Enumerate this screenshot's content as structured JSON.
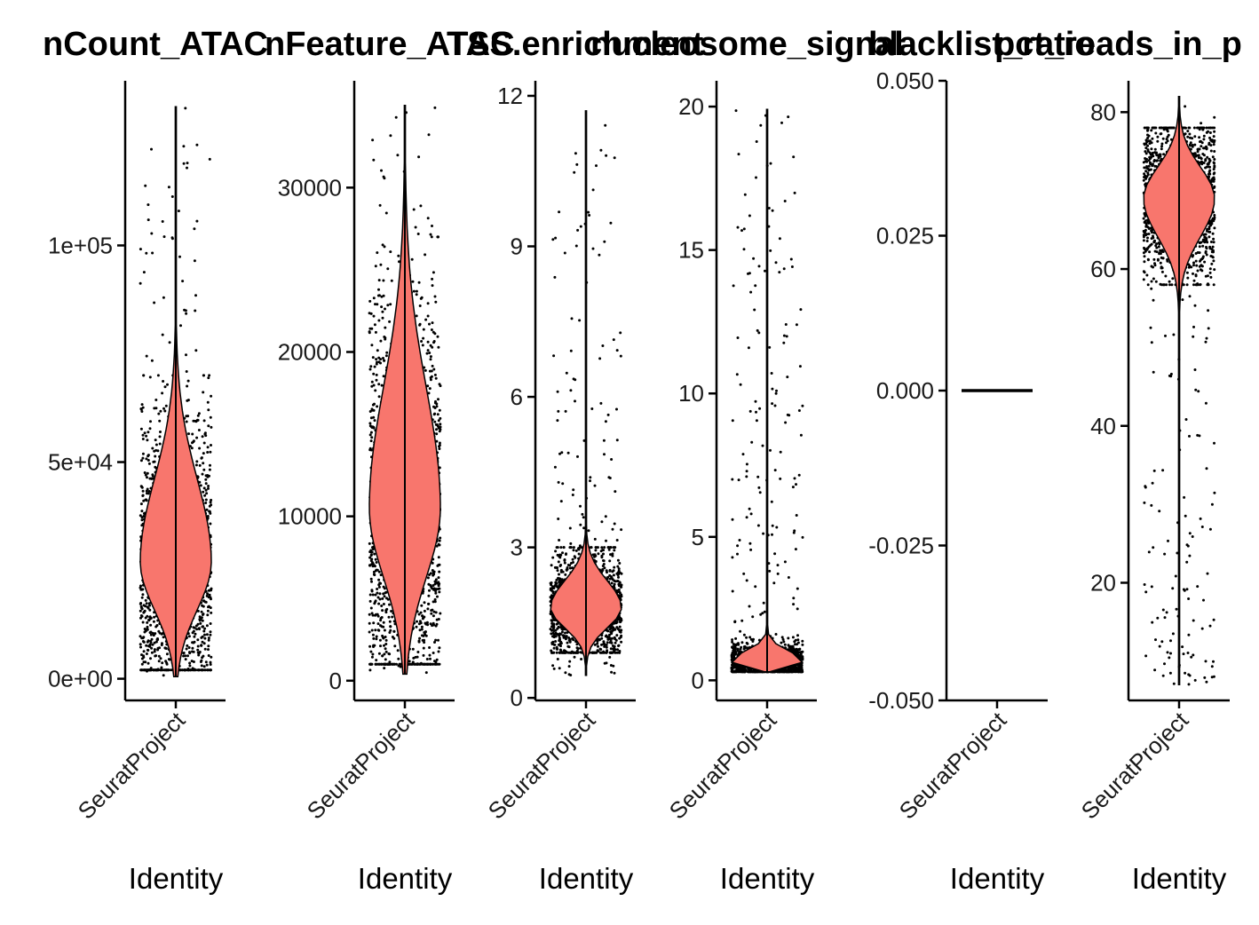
{
  "chart_data": [
    {
      "type": "violin",
      "title": "nCount_ATAC",
      "xlabel": "Identity",
      "categories": [
        "SeuratProject"
      ],
      "ylim": [
        -5000,
        138000
      ],
      "yticks": [
        0,
        50000,
        100000
      ],
      "ytick_labels": [
        "0e+00",
        "5e+04",
        "1e+05"
      ],
      "summary": {
        "min": 500,
        "max": 132000,
        "median": 27000,
        "bulk_low": 2000,
        "bulk_high": 70000
      },
      "fill_color": "#f8766d",
      "point_color": "#000000"
    },
    {
      "type": "violin",
      "title": "nFeature_ATAC",
      "xlabel": "Identity",
      "categories": [
        "SeuratProject"
      ],
      "ylim": [
        -1200,
        36500
      ],
      "yticks": [
        0,
        10000,
        20000,
        30000
      ],
      "ytick_labels": [
        "0",
        "10000",
        "20000",
        "30000"
      ],
      "summary": {
        "min": 400,
        "max": 35000,
        "median": 10500,
        "bulk_low": 1000,
        "bulk_high": 27000
      },
      "fill_color": "#f8766d",
      "point_color": "#000000"
    },
    {
      "type": "violin",
      "title": "TSS.enrichment",
      "xlabel": "Identity",
      "categories": [
        "SeuratProject"
      ],
      "ylim": [
        -0.05,
        12.3
      ],
      "yticks": [
        0,
        3,
        6,
        9,
        12
      ],
      "ytick_labels": [
        "0",
        "3",
        "6",
        "9",
        "12"
      ],
      "summary": {
        "min": 0.45,
        "max": 11.7,
        "median": 1.8,
        "bulk_low": 0.9,
        "bulk_high": 3.0
      },
      "fill_color": "#f8766d",
      "point_color": "#000000"
    },
    {
      "type": "violin",
      "title": "nucleosome_signal",
      "xlabel": "Identity",
      "categories": [
        "SeuratProject"
      ],
      "ylim": [
        -0.7,
        20.9
      ],
      "yticks": [
        0,
        5,
        10,
        15,
        20
      ],
      "ytick_labels": [
        "0",
        "5",
        "10",
        "15",
        "20"
      ],
      "summary": {
        "min": 0.3,
        "max": 19.9,
        "median": 0.65,
        "bulk_low": 0.3,
        "bulk_high": 1.5
      },
      "fill_color": "#f8766d",
      "point_color": "#000000"
    },
    {
      "type": "violin",
      "title": "blacklist_ratio",
      "xlabel": "Identity",
      "categories": [
        "SeuratProject"
      ],
      "ylim": [
        -0.05,
        0.05
      ],
      "yticks": [
        -0.05,
        -0.025,
        0,
        0.025,
        0.05
      ],
      "ytick_labels": [
        "-0.050",
        "-0.025",
        "0.000",
        "0.025",
        "0.050"
      ],
      "summary": {
        "min": 0,
        "max": 0,
        "median": 0,
        "bulk_low": 0,
        "bulk_high": 0
      },
      "fill_color": "#f8766d",
      "point_color": "#000000"
    },
    {
      "type": "violin",
      "title": "pct_reads_in_p",
      "xlabel": "Identity",
      "categories": [
        "SeuratProject"
      ],
      "ylim": [
        5.0,
        84.0
      ],
      "yticks": [
        20,
        40,
        60,
        80
      ],
      "ytick_labels": [
        "20",
        "40",
        "60",
        "80"
      ],
      "summary": {
        "min": 7,
        "max": 82,
        "median": 69,
        "bulk_low": 58,
        "bulk_high": 78
      },
      "fill_color": "#f8766d",
      "point_color": "#000000"
    }
  ]
}
